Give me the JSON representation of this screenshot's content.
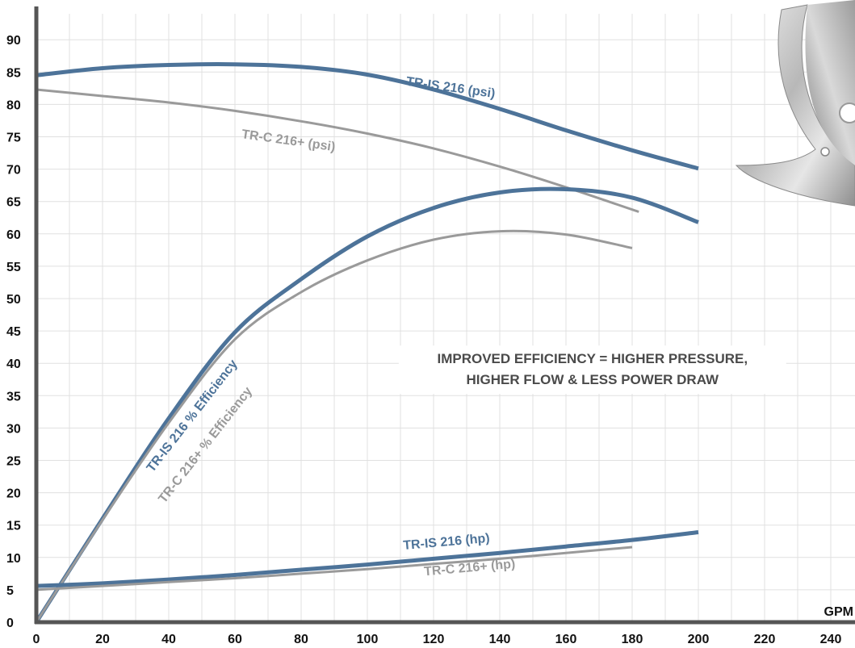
{
  "chart_data": {
    "type": "line",
    "title": "",
    "xlabel": "GPM",
    "ylabel": "",
    "xlim": [
      0,
      250
    ],
    "ylim": [
      0,
      94
    ],
    "x_ticks": [
      0,
      20,
      40,
      60,
      80,
      100,
      120,
      140,
      160,
      180,
      200,
      220,
      240
    ],
    "y_ticks": [
      0,
      5,
      10,
      15,
      20,
      25,
      30,
      35,
      40,
      45,
      50,
      55,
      60,
      65,
      70,
      75,
      80,
      85,
      90
    ],
    "grid": true,
    "colors": {
      "tr_is": "#4d7399",
      "tr_c": "#9a9a9a",
      "grid": "#e0e0e0",
      "axis": "#555555"
    },
    "series": [
      {
        "name": "TR-IS 216 (psi)",
        "color": "tr_is",
        "x": [
          0,
          20,
          40,
          60,
          80,
          100,
          120,
          140,
          160,
          180,
          200
        ],
        "y": [
          84.5,
          85.6,
          86.1,
          86.2,
          85.8,
          84.6,
          82.3,
          79.3,
          76.0,
          72.9,
          70.1
        ]
      },
      {
        "name": "TR-C 216+ (psi)",
        "color": "tr_c",
        "x": [
          0,
          20,
          40,
          60,
          80,
          100,
          120,
          140,
          160,
          182
        ],
        "y": [
          82.3,
          81.3,
          80.3,
          79.0,
          77.4,
          75.5,
          73.2,
          70.4,
          67.2,
          63.4
        ]
      },
      {
        "name": "TR-IS 216 % Efficiency",
        "color": "tr_is",
        "x": [
          0,
          20,
          40,
          60,
          80,
          100,
          120,
          140,
          160,
          180,
          200
        ],
        "y": [
          0,
          16.0,
          31.5,
          44.8,
          53.0,
          59.6,
          64.0,
          66.4,
          66.9,
          65.6,
          61.8
        ]
      },
      {
        "name": "TR-C 216+ % Efficiency",
        "color": "tr_c",
        "x": [
          0,
          20,
          40,
          60,
          80,
          100,
          120,
          140,
          160,
          180
        ],
        "y": [
          0,
          15.8,
          30.8,
          43.7,
          51.0,
          55.9,
          59.1,
          60.4,
          59.9,
          57.8
        ]
      },
      {
        "name": "TR-IS 216 (hp)",
        "color": "tr_is",
        "x": [
          0,
          20,
          40,
          60,
          80,
          100,
          120,
          140,
          160,
          180,
          200
        ],
        "y": [
          5.6,
          6.0,
          6.6,
          7.3,
          8.1,
          8.9,
          9.8,
          10.7,
          11.7,
          12.7,
          13.9
        ]
      },
      {
        "name": "TR-C 216+ (hp)",
        "color": "tr_c",
        "x": [
          0,
          20,
          40,
          60,
          80,
          100,
          120,
          140,
          160,
          180
        ],
        "y": [
          5.0,
          5.6,
          6.2,
          6.8,
          7.5,
          8.2,
          9.0,
          9.8,
          10.7,
          11.6
        ]
      }
    ],
    "curve_labels": [
      {
        "text": "TR-IS 216 (psi)",
        "color": "tr_is",
        "x": 125,
        "y": 82.0,
        "angle": 8
      },
      {
        "text": "TR-C 216+ (psi)",
        "color": "tr_c",
        "x": 76,
        "y": 73.8,
        "angle": 8
      },
      {
        "text": "TR-IS 216 % Efficiency",
        "color": "tr_is",
        "x": 48,
        "y": 31.5,
        "angle": -52
      },
      {
        "text": "TR-C 216+ % Efficiency",
        "color": "tr_c",
        "x": 52,
        "y": 27.0,
        "angle": -52
      },
      {
        "text": "TR-IS 216 (hp)",
        "color": "tr_is",
        "x": 124,
        "y": 11.8,
        "angle": -5
      },
      {
        "text": "TR-C 216+ (hp)",
        "color": "tr_c",
        "x": 131,
        "y": 7.8,
        "angle": -5
      }
    ],
    "annotation": {
      "lines": [
        "IMPROVED EFFICIENCY = HIGHER PRESSURE,",
        "HIGHER FLOW & LESS POWER DRAW"
      ],
      "x": 168,
      "y": 40.0
    }
  }
}
